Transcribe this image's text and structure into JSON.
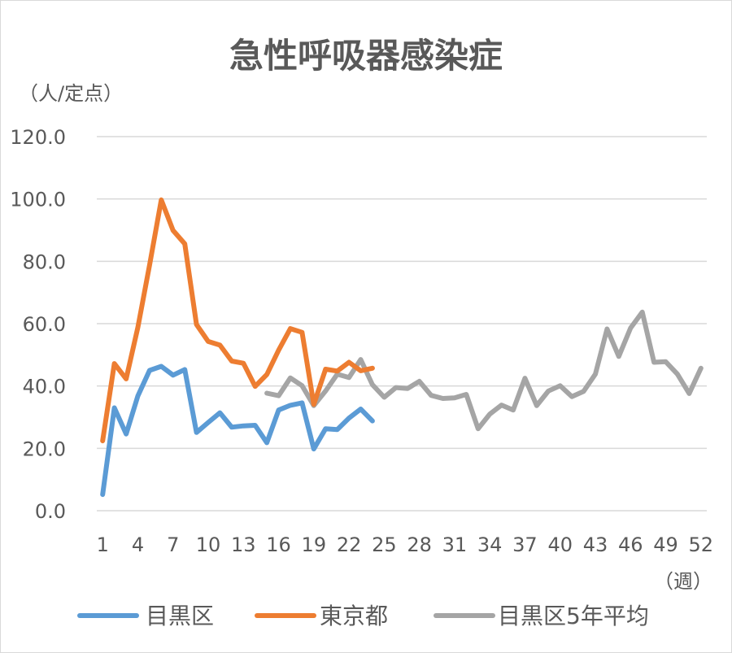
{
  "chart_data": {
    "type": "line",
    "title": "急性呼吸器感染症",
    "ylabel": "（人/定点）",
    "xlabel": "（週）",
    "ylim": [
      0,
      120
    ],
    "yticks": [
      "0.0",
      "20.0",
      "40.0",
      "60.0",
      "80.0",
      "100.0",
      "120.0"
    ],
    "xticks": [
      "1",
      "4",
      "7",
      "10",
      "13",
      "16",
      "19",
      "22",
      "25",
      "28",
      "31",
      "34",
      "37",
      "40",
      "43",
      "46",
      "49",
      "52"
    ],
    "grid": true,
    "legend_position": "bottom",
    "series": [
      {
        "name": "目黒区",
        "color": "#5b9bd5",
        "x": [
          1,
          2,
          3,
          4,
          5,
          6,
          7,
          8,
          9,
          10,
          11,
          12,
          13,
          14,
          15,
          16,
          17,
          18,
          19,
          20,
          21,
          22,
          23,
          24
        ],
        "values": [
          5.2,
          33.0,
          24.6,
          36.8,
          45.0,
          46.3,
          43.5,
          45.3,
          25.1,
          28.3,
          31.4,
          26.8,
          27.2,
          27.4,
          21.8,
          32.3,
          33.8,
          34.6,
          19.8,
          26.3,
          26.0,
          29.7,
          32.6,
          28.8
        ]
      },
      {
        "name": "東京都",
        "color": "#ed7d31",
        "x": [
          1,
          2,
          3,
          4,
          5,
          6,
          7,
          8,
          9,
          10,
          11,
          12,
          13,
          14,
          15,
          16,
          17,
          18,
          19,
          20,
          21,
          22,
          23,
          24
        ],
        "values": [
          22.4,
          47.2,
          42.3,
          58.8,
          78.8,
          99.7,
          89.9,
          85.6,
          59.7,
          54.3,
          53.1,
          48.0,
          47.3,
          39.9,
          43.7,
          51.5,
          58.4,
          57.2,
          34.1,
          45.4,
          44.8,
          47.6,
          44.9,
          45.7
        ]
      },
      {
        "name": "目黒区5年平均",
        "color": "#a5a5a5",
        "x": [
          15,
          16,
          17,
          18,
          19,
          20,
          21,
          22,
          23,
          24,
          25,
          26,
          27,
          28,
          29,
          30,
          31,
          32,
          33,
          34,
          35,
          36,
          37,
          38,
          39,
          40,
          41,
          42,
          43,
          44,
          45,
          46,
          47,
          48,
          49,
          50,
          51,
          52
        ],
        "values": [
          37.7,
          36.9,
          42.6,
          40.1,
          33.7,
          38.4,
          43.8,
          42.7,
          48.5,
          40.4,
          36.4,
          39.5,
          39.2,
          41.5,
          37.0,
          36.0,
          36.2,
          37.3,
          26.3,
          31.0,
          33.9,
          32.3,
          42.5,
          33.7,
          38.4,
          40.1,
          36.6,
          38.3,
          43.8,
          58.3,
          49.5,
          58.6,
          63.7,
          47.6,
          47.8,
          43.8,
          37.6,
          45.7
        ]
      }
    ]
  }
}
